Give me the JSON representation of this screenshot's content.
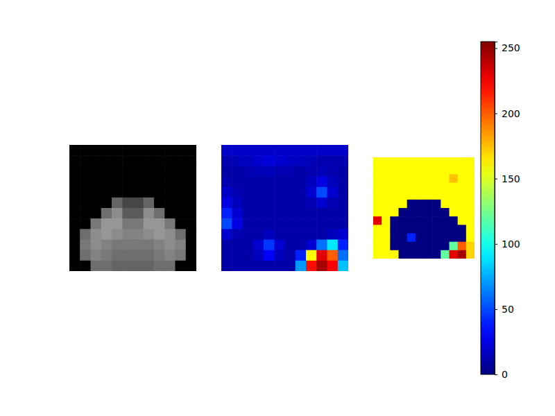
{
  "chart_data": [
    {
      "type": "heatmap",
      "color": "gray",
      "tick_labels": false,
      "cells": [
        [
          0,
          0,
          0,
          0,
          0,
          0,
          0,
          0,
          0,
          0,
          0,
          0
        ],
        [
          0,
          0,
          0,
          0,
          0,
          0,
          0,
          0,
          0,
          0,
          0,
          0
        ],
        [
          0,
          0,
          0,
          0,
          0,
          0,
          0,
          0,
          0,
          0,
          0,
          0
        ],
        [
          0,
          0,
          0,
          0,
          0,
          0,
          0,
          0,
          0,
          0,
          0,
          0
        ],
        [
          0,
          0,
          0,
          0,
          0,
          0,
          0,
          0,
          0,
          0,
          0,
          0
        ],
        [
          0,
          0,
          0,
          0,
          100,
          70,
          70,
          100,
          0,
          0,
          0,
          0
        ],
        [
          0,
          0,
          0,
          110,
          140,
          90,
          90,
          140,
          110,
          0,
          0,
          0
        ],
        [
          0,
          0,
          120,
          150,
          150,
          120,
          120,
          150,
          150,
          120,
          0,
          0
        ],
        [
          0,
          110,
          140,
          150,
          140,
          130,
          130,
          140,
          150,
          140,
          110,
          0
        ],
        [
          0,
          120,
          140,
          130,
          120,
          120,
          120,
          120,
          130,
          140,
          130,
          0
        ],
        [
          0,
          110,
          130,
          120,
          110,
          110,
          110,
          110,
          120,
          130,
          120,
          0
        ],
        [
          0,
          0,
          110,
          110,
          100,
          100,
          100,
          100,
          110,
          110,
          0,
          0
        ]
      ]
    },
    {
      "type": "heatmap",
      "color": "jet",
      "tick_labels": false,
      "cells": [
        [
          18,
          18,
          18,
          18,
          18,
          18,
          18,
          18,
          18,
          18,
          18,
          18
        ],
        [
          12,
          14,
          16,
          20,
          22,
          20,
          18,
          16,
          14,
          12,
          12,
          12
        ],
        [
          10,
          10,
          12,
          14,
          14,
          12,
          12,
          10,
          12,
          14,
          12,
          10
        ],
        [
          12,
          10,
          10,
          10,
          10,
          10,
          10,
          10,
          15,
          25,
          15,
          10
        ],
        [
          18,
          12,
          10,
          10,
          10,
          10,
          10,
          10,
          20,
          50,
          20,
          10
        ],
        [
          25,
          15,
          10,
          10,
          10,
          10,
          10,
          10,
          12,
          20,
          12,
          10
        ],
        [
          40,
          20,
          10,
          10,
          10,
          10,
          10,
          10,
          10,
          10,
          10,
          10
        ],
        [
          50,
          25,
          10,
          10,
          10,
          10,
          10,
          10,
          10,
          10,
          10,
          10
        ],
        [
          20,
          12,
          10,
          10,
          15,
          10,
          10,
          10,
          10,
          10,
          15,
          20
        ],
        [
          10,
          10,
          10,
          20,
          45,
          20,
          10,
          10,
          20,
          60,
          90,
          40
        ],
        [
          10,
          10,
          10,
          15,
          30,
          15,
          10,
          40,
          160,
          230,
          200,
          60
        ],
        [
          10,
          10,
          10,
          10,
          10,
          10,
          10,
          70,
          220,
          245,
          225,
          80
        ]
      ]
    },
    {
      "type": "heatmap",
      "color": "jet",
      "tick_labels": false,
      "cells": [
        [
          160,
          160,
          160,
          160,
          160,
          160,
          160,
          160,
          160,
          160,
          160,
          160
        ],
        [
          160,
          160,
          160,
          160,
          160,
          160,
          160,
          160,
          160,
          160,
          160,
          160
        ],
        [
          160,
          160,
          160,
          160,
          160,
          160,
          160,
          160,
          160,
          175,
          160,
          160
        ],
        [
          160,
          160,
          160,
          160,
          160,
          160,
          160,
          160,
          160,
          160,
          160,
          160
        ],
        [
          160,
          160,
          160,
          160,
          160,
          160,
          160,
          160,
          160,
          160,
          160,
          160
        ],
        [
          160,
          160,
          160,
          160,
          0,
          0,
          0,
          0,
          160,
          160,
          160,
          160
        ],
        [
          160,
          160,
          160,
          0,
          0,
          0,
          0,
          0,
          0,
          160,
          160,
          160
        ],
        [
          230,
          160,
          0,
          0,
          0,
          0,
          0,
          0,
          0,
          0,
          160,
          160
        ],
        [
          160,
          160,
          0,
          0,
          0,
          0,
          0,
          0,
          0,
          0,
          0,
          160
        ],
        [
          160,
          160,
          0,
          0,
          40,
          0,
          0,
          0,
          0,
          0,
          0,
          160
        ],
        [
          160,
          160,
          0,
          0,
          0,
          0,
          0,
          0,
          0,
          120,
          200,
          170
        ],
        [
          160,
          160,
          160,
          0,
          0,
          0,
          0,
          0,
          120,
          230,
          245,
          170
        ]
      ],
      "colorbar": {
        "range": [
          0,
          255
        ],
        "ticks": [
          0,
          50,
          100,
          150,
          200,
          250
        ]
      }
    }
  ]
}
